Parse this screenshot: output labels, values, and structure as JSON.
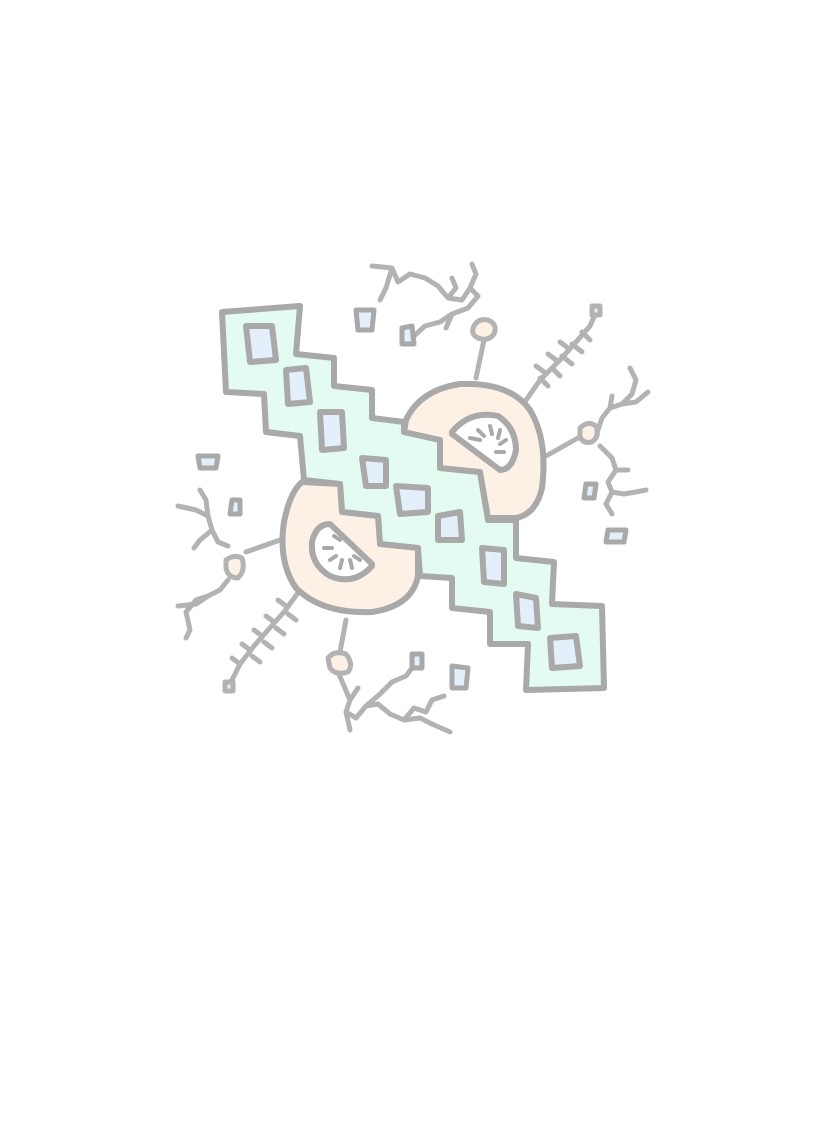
{
  "artwork": {
    "description_text": "",
    "colors": {
      "outline": "#a9a9a9",
      "background": "#ffffff",
      "band_fill": "#e3fbf1",
      "tile_fill": "#e3f0fb",
      "pod_fill": "#fdf1e6",
      "pod_inner_fill": "#ffffff"
    },
    "elements": {
      "zigzag_band_count": 1,
      "window_tile_count": 10,
      "pod_count": 2,
      "floating_tile_count": 10,
      "branching_vine_count": 6,
      "antenna_count": 4
    }
  }
}
